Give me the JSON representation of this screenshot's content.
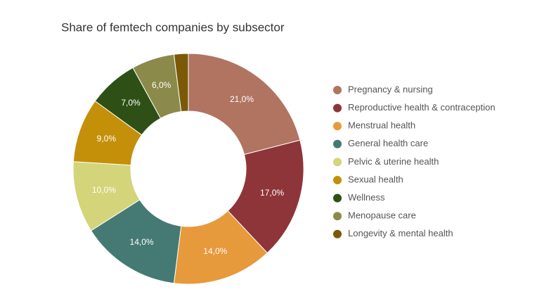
{
  "chart_data": {
    "type": "donut",
    "title": "Share of femtech companies by subsector",
    "categories": [
      "Pregnancy & nursing",
      "Reproductive health & contraception",
      "Menstrual health",
      "General health care",
      "Pelvic & uterine health",
      "Sexual health",
      "Wellness",
      "Menopause care",
      "Longevity & mental health"
    ],
    "values": [
      21,
      17,
      14,
      14,
      10,
      9,
      7,
      6,
      2
    ],
    "value_labels": [
      "21,0%",
      "17,0%",
      "14,0%",
      "14,0%",
      "10,0%",
      "9,0%",
      "7,0%",
      "6,0%",
      null
    ],
    "colors": [
      "#b07460",
      "#8e353a",
      "#e69a3c",
      "#457a74",
      "#d4d47a",
      "#c4900a",
      "#2e5016",
      "#8c8a4a",
      "#7a5a08"
    ],
    "legend": "right"
  }
}
